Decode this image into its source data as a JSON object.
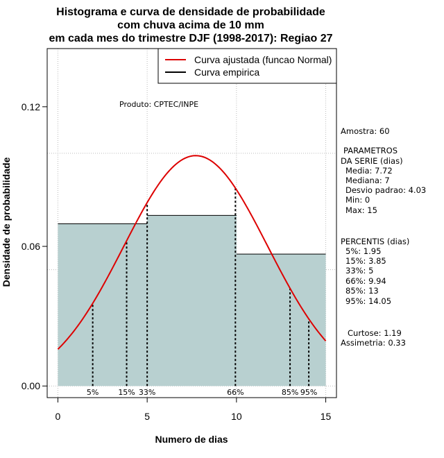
{
  "chart_data": {
    "type": "histogram",
    "title_lines": [
      "Histograma e curva de densidade de probabilidade",
      "com chuva acima de 10 mm",
      "em cada mes do trimestre DJF (1998-2017): Regiao 27"
    ],
    "xlabel": "Numero de dias",
    "ylabel": "Densidade de probabilidade",
    "xlim": [
      -0.6,
      15.6
    ],
    "ylim": [
      -0.005,
      0.145
    ],
    "x_ticks": [
      0,
      5,
      10,
      15
    ],
    "y_ticks": [
      0.0,
      0.06,
      0.12
    ],
    "y_tick_labels": [
      "0.00",
      "0.06",
      "0.12"
    ],
    "grid": true,
    "bars": [
      {
        "x0": 0,
        "x1": 5,
        "value": 0.0697
      },
      {
        "x0": 5,
        "x1": 10,
        "value": 0.0733
      },
      {
        "x0": 10,
        "x1": 15,
        "value": 0.0567
      }
    ],
    "bar_color": "#b8d0d0",
    "normal_curve": {
      "mean": 7.72,
      "sd": 4.03,
      "x_from": 0,
      "x_to": 15,
      "color": "#dd0000"
    },
    "percentile_lines": [
      {
        "label": "5%",
        "x": 1.95
      },
      {
        "label": "15%",
        "x": 3.85
      },
      {
        "label": "33%",
        "x": 5
      },
      {
        "label": "66%",
        "x": 9.94
      },
      {
        "label": "85%",
        "x": 13
      },
      {
        "label": "95%",
        "x": 14.05
      }
    ],
    "legend": {
      "position": "top-right",
      "entries": [
        {
          "label": "Curva ajustada (funcao Normal)",
          "color": "#dd0000"
        },
        {
          "label": "Curva empirica",
          "color": "#000000"
        }
      ]
    },
    "annotation": "Produto: CPTEC/INPE"
  },
  "stats_panel": {
    "amostra": "Amostra: 60",
    "param_header_1": "PARAMETROS",
    "param_header_2": "DA SERIE (dias)",
    "params": [
      "Media: 7.72",
      "Mediana: 7",
      "Desvio padrao: 4.03",
      "Min: 0",
      "Max: 15"
    ],
    "percentis_header": "PERCENTIS (dias)",
    "percentis": [
      "5%: 1.95",
      "15%: 3.85",
      "33%: 5",
      "66%: 9.94",
      "85%: 13",
      "95%: 14.05"
    ],
    "curtose": "Curtose: 1.19",
    "assimetria": "Assimetria: 0.33"
  }
}
